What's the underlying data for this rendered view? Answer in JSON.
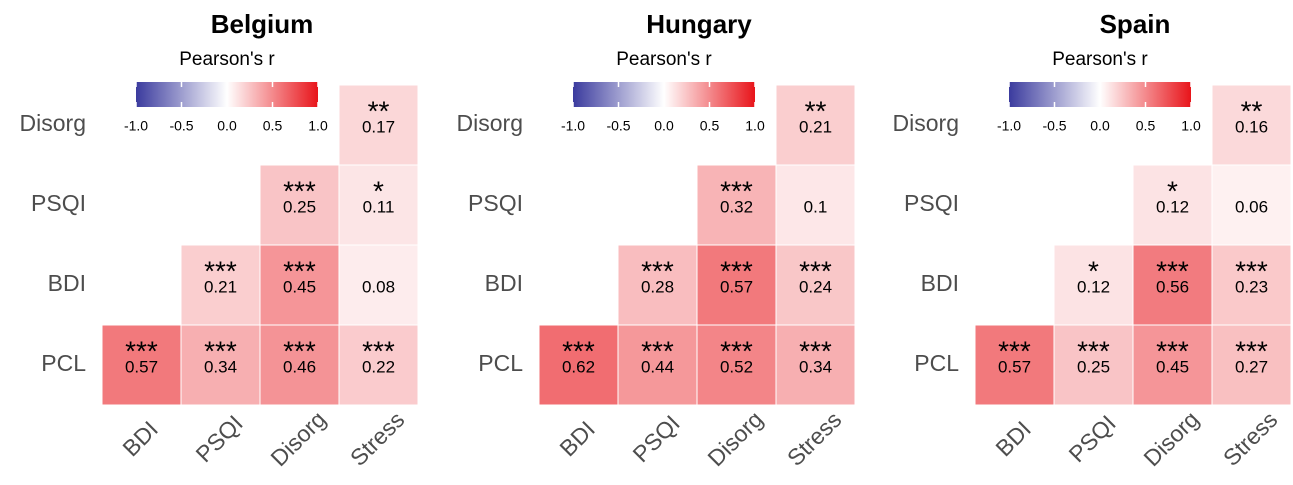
{
  "chart_data": [
    {
      "type": "heatmap",
      "title": "Belgium",
      "colorbar_title": "Pearson's r",
      "x_categories": [
        "BDI",
        "PSQI",
        "Disorg",
        "Stress"
      ],
      "y_categories": [
        "Disorg",
        "PSQI",
        "BDI",
        "PCL"
      ],
      "values": [
        [
          null,
          null,
          null,
          0.17
        ],
        [
          null,
          null,
          0.25,
          0.11
        ],
        [
          null,
          0.21,
          0.45,
          0.08
        ],
        [
          0.57,
          0.34,
          0.46,
          0.22
        ]
      ],
      "stars": [
        [
          null,
          null,
          null,
          "**"
        ],
        [
          null,
          null,
          "***",
          "*"
        ],
        [
          null,
          "***",
          "***",
          null
        ],
        [
          "***",
          "***",
          "***",
          "***"
        ]
      ],
      "colorscale": [
        "#3b3b9e",
        "#ffffff",
        "#e8141a"
      ],
      "clim": [
        -1,
        1
      ],
      "cticks": [
        {
          "value": -1,
          "label": "-1.0"
        },
        -0.5,
        {
          "value": 0,
          "label": "0.0"
        },
        0.5,
        {
          "value": 1,
          "label": "1.0"
        }
      ]
    },
    {
      "type": "heatmap",
      "title": "Hungary",
      "colorbar_title": "Pearson's r",
      "x_categories": [
        "BDI",
        "PSQI",
        "Disorg",
        "Stress"
      ],
      "y_categories": [
        "Disorg",
        "PSQI",
        "BDI",
        "PCL"
      ],
      "values": [
        [
          null,
          null,
          null,
          0.21
        ],
        [
          null,
          null,
          0.32,
          0.1
        ],
        [
          null,
          0.28,
          0.57,
          0.24
        ],
        [
          0.62,
          0.44,
          0.52,
          0.34
        ]
      ],
      "stars": [
        [
          null,
          null,
          null,
          "**"
        ],
        [
          null,
          null,
          "***",
          null
        ],
        [
          null,
          "***",
          "***",
          "***"
        ],
        [
          "***",
          "***",
          "***",
          "***"
        ]
      ],
      "colorscale": [
        "#3b3b9e",
        "#ffffff",
        "#e8141a"
      ],
      "clim": [
        -1,
        1
      ],
      "cticks": [
        {
          "value": -1,
          "label": "-1.0"
        },
        -0.5,
        {
          "value": 0,
          "label": "0.0"
        },
        0.5,
        {
          "value": 1,
          "label": "1.0"
        }
      ]
    },
    {
      "type": "heatmap",
      "title": "Spain",
      "colorbar_title": "Pearson's r",
      "x_categories": [
        "BDI",
        "PSQI",
        "Disorg",
        "Stress"
      ],
      "y_categories": [
        "Disorg",
        "PSQI",
        "BDI",
        "PCL"
      ],
      "values": [
        [
          null,
          null,
          null,
          0.16
        ],
        [
          null,
          null,
          0.12,
          0.06
        ],
        [
          null,
          0.12,
          0.56,
          0.23
        ],
        [
          0.57,
          0.25,
          0.45,
          0.27
        ]
      ],
      "stars": [
        [
          null,
          null,
          null,
          "**"
        ],
        [
          null,
          null,
          "*",
          null
        ],
        [
          null,
          "*",
          "***",
          "***"
        ],
        [
          "***",
          "***",
          "***",
          "***"
        ]
      ],
      "colorscale": [
        "#3b3b9e",
        "#ffffff",
        "#e8141a"
      ],
      "clim": [
        -1,
        1
      ],
      "cticks": [
        {
          "value": -1,
          "label": "-1.0"
        },
        -0.5,
        {
          "value": 0,
          "label": "0.0"
        },
        0.5,
        {
          "value": 1,
          "label": "1.0"
        }
      ]
    }
  ]
}
